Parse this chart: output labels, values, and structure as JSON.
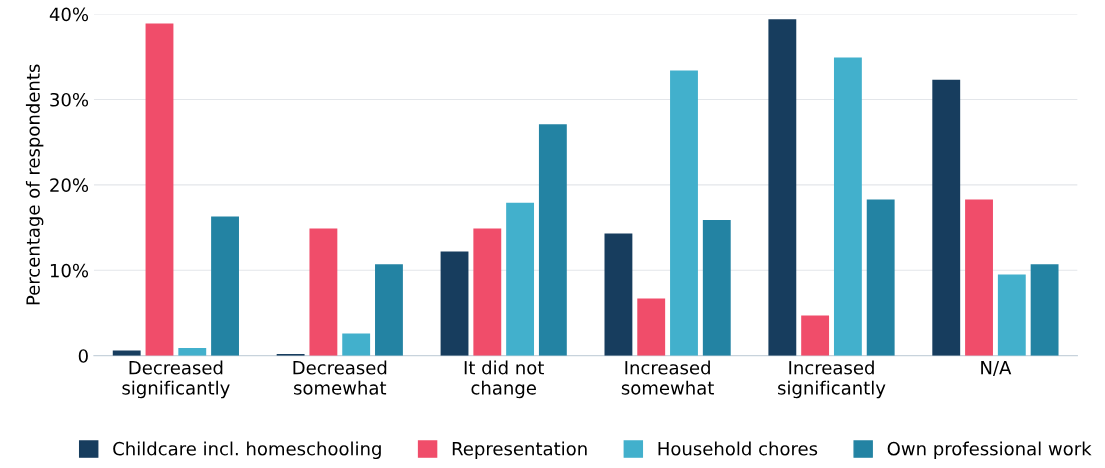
{
  "chart_data": {
    "type": "bar",
    "ylabel": "Percentage of respondents",
    "categories": [
      "Decreased\nsignificantly",
      "Decreased\nsomewhat",
      "It did not\nchange",
      "Increased\nsomewhat",
      "Increased\nsignificantly",
      "N/A"
    ],
    "series": [
      {
        "name": "Childcare incl. homeschooling",
        "color": "#173d5e",
        "values": [
          0.6,
          0.2,
          12.2,
          14.3,
          39.4,
          32.3
        ]
      },
      {
        "name": "Representation",
        "color": "#f04d6a",
        "values": [
          38.9,
          14.9,
          14.9,
          6.7,
          4.7,
          18.3
        ]
      },
      {
        "name": "Household chores",
        "color": "#42b0cc",
        "values": [
          0.9,
          2.6,
          17.9,
          33.4,
          34.9,
          9.5
        ]
      },
      {
        "name": "Own professional work",
        "color": "#2383a3",
        "values": [
          16.3,
          10.7,
          27.1,
          15.9,
          18.3,
          10.7
        ]
      }
    ],
    "ylim": [
      0,
      40
    ],
    "yticks": [
      {
        "value": 0,
        "label": "0"
      },
      {
        "value": 10,
        "label": "10%"
      },
      {
        "value": 20,
        "label": "20%"
      },
      {
        "value": 30,
        "label": "30%"
      },
      {
        "value": 40,
        "label": "40%"
      }
    ],
    "grid": "y",
    "legend": "bottom"
  }
}
